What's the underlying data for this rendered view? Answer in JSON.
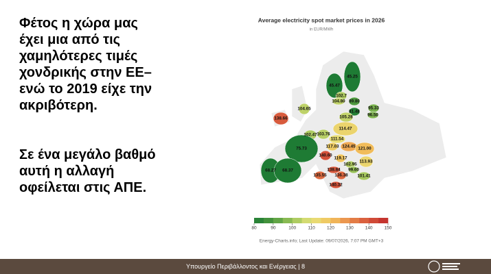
{
  "slide": {
    "paragraphs": [
      [
        "Φέτος η χώρα μας",
        "έχει μια από τις",
        "χαμηλότερες τιμές",
        "χονδρικής στην ΕΕ–",
        "ενώ το 2019 είχε την",
        "ακριβότερη."
      ],
      [
        "Σε ένα μεγάλο βαθμό",
        "αυτή η αλλαγή",
        "οφείλεται στις ΑΠΕ."
      ]
    ],
    "footer": "Υπουργείο Περιβάλλοντος και Ενέργειας | 8"
  },
  "map": {
    "title": "Average electricity spot market prices in 2026",
    "subtitle": "in EUR/MWh",
    "source": "Energy-Charts.info; Last Update: 09/07/2026, 7:07 PM GMT+3",
    "regions": {
      "values": [
        45.25,
        45.47,
        102.7,
        104.8,
        89.8,
        95.33,
        96.5,
        104.65,
        81.48,
        105.28,
        138.66,
        114.47,
        103.76,
        102.47,
        111.54,
        117.03,
        124.45,
        121,
        75.73,
        140.6,
        119.17,
        113.93,
        102.95,
        138.84,
        99.6,
        135.55,
        136.38,
        101.41,
        68.27,
        68.37,
        140.32
      ],
      "value_labels": [
        "45.25",
        "45.47",
        "102.7",
        "104.80",
        "89.80",
        "95.33",
        "96.50",
        "104.65",
        "81.48",
        "105.28",
        "138.66",
        "114.47",
        "103.76",
        "102.47",
        "111.54",
        "117.03",
        "124.45",
        "121.00",
        "75.73",
        "140.60",
        "119.17",
        "113.93",
        "102.95",
        "138.84",
        "99.60",
        "135.55",
        "136.38",
        "101.41",
        "68.27",
        "68.37",
        "140.32"
      ]
    },
    "colorbar": {
      "ticks": [
        80,
        90,
        100,
        110,
        120,
        130,
        140,
        150
      ],
      "colors": [
        "#1e7b34",
        "#4f9a3f",
        "#9cc45a",
        "#e6e27a",
        "#f2c25c",
        "#e8894a",
        "#d5543b",
        "#c02a2b"
      ]
    }
  }
}
